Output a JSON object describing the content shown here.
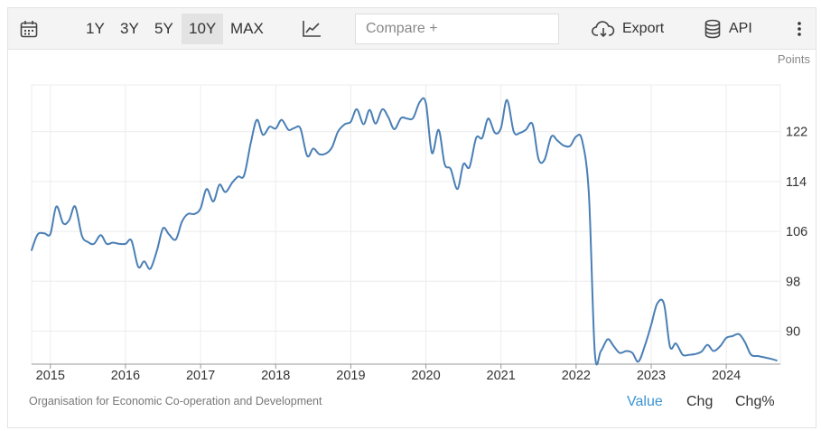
{
  "toolbar": {
    "ranges": [
      "1Y",
      "3Y",
      "5Y",
      "10Y",
      "MAX"
    ],
    "active_range": "10Y",
    "compare_placeholder": "Compare +",
    "export_label": "Export",
    "api_label": "API",
    "icons": [
      "calendar-icon",
      "line-chart-icon",
      "cloud-download-icon",
      "database-icon",
      "more-vertical-icon"
    ]
  },
  "footer": {
    "source": "Organisation for Economic Co-operation and Development",
    "tabs": [
      "Value",
      "Chg",
      "Chg%"
    ],
    "active_tab": "Value"
  },
  "colors": {
    "line": "#4a7fb5",
    "accent": "#3b93d6",
    "grid": "#ececec"
  },
  "chart_data": {
    "type": "line",
    "unit_label": "Points",
    "y_axis_position": "right",
    "ylim": [
      84.7,
      129.5
    ],
    "yticks": [
      90,
      98,
      106,
      114,
      122
    ],
    "xlim": [
      2014.75,
      2024.72
    ],
    "xticks": [
      "2015",
      "2016",
      "2017",
      "2018",
      "2019",
      "2020",
      "2021",
      "2022",
      "2023",
      "2024"
    ],
    "grid": true,
    "series": [
      {
        "x": [
          2014.75,
          2014.83,
          2014.92,
          2015.0,
          2015.08,
          2015.17,
          2015.25,
          2015.33,
          2015.42,
          2015.5,
          2015.58,
          2015.67,
          2015.75,
          2015.83,
          2015.92,
          2016.0,
          2016.08,
          2016.17,
          2016.25,
          2016.33,
          2016.42,
          2016.5,
          2016.58,
          2016.67,
          2016.75,
          2016.83,
          2016.92,
          2017.0,
          2017.08,
          2017.17,
          2017.25,
          2017.33,
          2017.42,
          2017.5,
          2017.58,
          2017.67,
          2017.75,
          2017.83,
          2017.92,
          2018.0,
          2018.08,
          2018.17,
          2018.25,
          2018.33,
          2018.42,
          2018.5,
          2018.58,
          2018.67,
          2018.75,
          2018.83,
          2018.92,
          2019.0,
          2019.08,
          2019.17,
          2019.25,
          2019.33,
          2019.42,
          2019.5,
          2019.58,
          2019.67,
          2019.75,
          2019.83,
          2019.92,
          2020.0,
          2020.08,
          2020.17,
          2020.25,
          2020.33,
          2020.42,
          2020.5,
          2020.58,
          2020.67,
          2020.75,
          2020.83,
          2020.92,
          2021.0,
          2021.08,
          2021.17,
          2021.25,
          2021.33,
          2021.42,
          2021.5,
          2021.58,
          2021.67,
          2021.75,
          2021.83,
          2021.92,
          2022.0,
          2022.08,
          2022.17,
          2022.25,
          2022.33,
          2022.42,
          2022.5,
          2022.58,
          2022.67,
          2022.75,
          2022.83,
          2022.92,
          2023.0,
          2023.08,
          2023.17,
          2023.25,
          2023.33,
          2023.42,
          2023.5,
          2023.58,
          2023.67,
          2023.75,
          2023.83,
          2023.92,
          2024.0,
          2024.08,
          2024.17,
          2024.25,
          2024.33,
          2024.42,
          2024.5,
          2024.58,
          2024.67
        ],
        "values": [
          103.0,
          105.5,
          105.7,
          105.6,
          110.0,
          107.3,
          107.8,
          110.0,
          105.3,
          104.3,
          104.0,
          105.4,
          104.0,
          104.2,
          104.0,
          104.0,
          104.5,
          100.3,
          101.2,
          100.0,
          103.0,
          106.5,
          105.5,
          104.7,
          107.5,
          108.8,
          108.8,
          109.7,
          112.8,
          110.8,
          113.5,
          112.3,
          113.8,
          114.8,
          115.0,
          120.3,
          123.9,
          121.5,
          122.8,
          122.5,
          123.9,
          122.3,
          122.6,
          122.5,
          118.1,
          119.3,
          118.4,
          118.5,
          119.5,
          122.0,
          123.2,
          123.6,
          125.6,
          123.2,
          125.5,
          123.3,
          125.6,
          124.3,
          122.4,
          124.2,
          124.1,
          124.2,
          126.8,
          126.6,
          118.6,
          122.3,
          116.8,
          116.0,
          112.8,
          116.8,
          116.3,
          121.0,
          121.0,
          124.1,
          121.8,
          122.6,
          127.1,
          122.0,
          121.8,
          122.3,
          123.2,
          117.6,
          117.5,
          121.2,
          120.6,
          119.8,
          119.7,
          121.2,
          120.6,
          112.0,
          86.5,
          86.8,
          88.7,
          87.6,
          86.5,
          86.8,
          86.5,
          85.1,
          87.8,
          91.0,
          94.4,
          94.4,
          87.5,
          88.0,
          86.2,
          86.2,
          86.3,
          86.7,
          87.8,
          86.8,
          87.6,
          88.9,
          89.2,
          89.5,
          88.2,
          86.2,
          86.0,
          85.8,
          85.6,
          85.3
        ]
      }
    ]
  }
}
